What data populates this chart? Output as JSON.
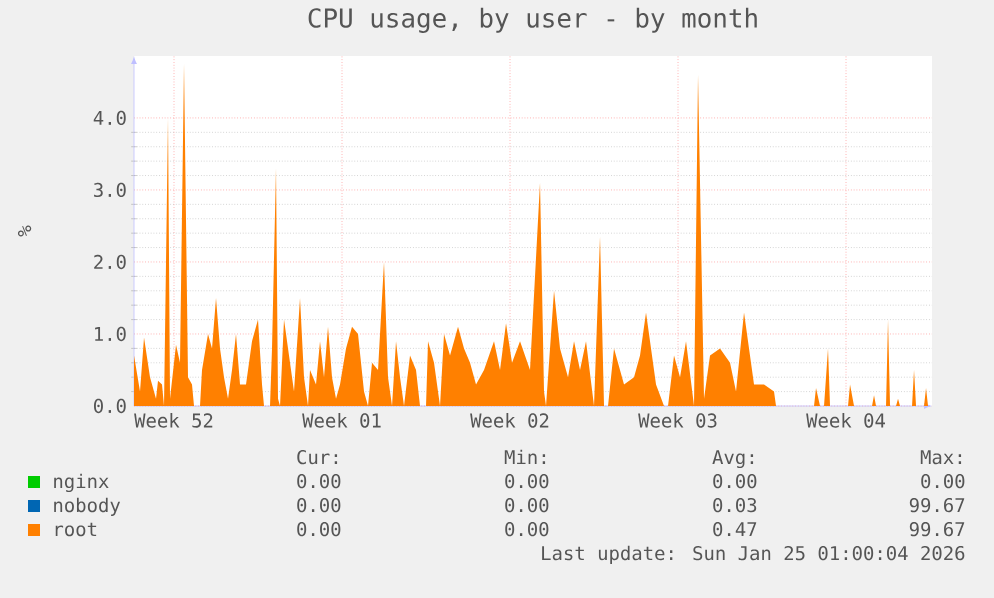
{
  "chart_data": {
    "type": "area",
    "title": "CPU usage, by user - by month",
    "ylabel": "%",
    "x": [
      "2025-12-22T20:00",
      "2025-12-23T02:00",
      "2025-12-23T06:00",
      "2025-12-23T12:00",
      "2025-12-23T18:00",
      "2025-12-23T20:00",
      "2025-12-24T00:00",
      "2025-12-24T02:00",
      "2025-12-24T06:00",
      "2025-12-24T08:00",
      "2025-12-24T14:00",
      "2025-12-24T18:00",
      "2025-12-24T22:00",
      "2025-12-25T02:00",
      "2025-12-25T06:00",
      "2025-12-25T08:00",
      "2025-12-25T14:00",
      "2025-12-25T16:00",
      "2025-12-25T22:00",
      "2025-12-26T02:00",
      "2025-12-26T06:00",
      "2025-12-26T10:00",
      "2025-12-26T14:00",
      "2025-12-26T18:00",
      "2025-12-26T22:00",
      "2025-12-27T02:00",
      "2025-12-27T06:00",
      "2025-12-27T12:00",
      "2025-12-27T18:00",
      "2025-12-28T00:00",
      "2025-12-28T04:00",
      "2025-12-28T06:00",
      "2025-12-28T12:00",
      "2025-12-28T14:00",
      "2025-12-28T18:00",
      "2025-12-28T20:00",
      "2025-12-28T22:00",
      "2025-12-29T02:00",
      "2025-12-29T08:00",
      "2025-12-29T12:00",
      "2025-12-29T18:00",
      "2025-12-29T22:00",
      "2025-12-30T02:00",
      "2025-12-30T04:00",
      "2025-12-30T10:00",
      "2025-12-30T14:00",
      "2025-12-30T18:00",
      "2025-12-30T22:00",
      "2025-12-31T02:00",
      "2025-12-31T06:00",
      "2025-12-31T10:00",
      "2025-12-31T16:00",
      "2025-12-31T22:00",
      "2026-01-01T04:00",
      "2026-01-01T10:00",
      "2026-01-01T14:00",
      "2026-01-01T18:00",
      "2026-01-02T00:00",
      "2026-01-02T06:00",
      "2026-01-02T10:00",
      "2026-01-02T14:00",
      "2026-01-02T18:00",
      "2026-01-02T22:00",
      "2026-01-03T02:00",
      "2026-01-03T08:00",
      "2026-01-03T14:00",
      "2026-01-03T18:00",
      "2026-01-04T00:00",
      "2026-01-04T02:00",
      "2026-01-04T08:00",
      "2026-01-04T14:00",
      "2026-01-04T18:00",
      "2026-01-05T00:00",
      "2026-01-05T08:00",
      "2026-01-05T14:00",
      "2026-01-05T20:00",
      "2026-01-06T02:00",
      "2026-01-06T10:00",
      "2026-01-06T20:00",
      "2026-01-07T02:00",
      "2026-01-07T08:00",
      "2026-01-07T14:00",
      "2026-01-07T22:00",
      "2026-01-08T08:00",
      "2026-01-08T18:00",
      "2026-01-08T22:00",
      "2026-01-09T00:00",
      "2026-01-09T08:00",
      "2026-01-09T14:00",
      "2026-01-09T22:00",
      "2026-01-10T04:00",
      "2026-01-10T10:00",
      "2026-01-10T16:00",
      "2026-01-11T00:00",
      "2026-01-11T06:00",
      "2026-01-11T10:00",
      "2026-01-11T14:00",
      "2026-01-11T20:00",
      "2026-01-12T06:00",
      "2026-01-12T16:00",
      "2026-01-12T22:00",
      "2026-01-13T04:00",
      "2026-01-13T14:00",
      "2026-01-13T22:00",
      "2026-01-14T02:00",
      "2026-01-14T08:00",
      "2026-01-14T14:00",
      "2026-01-14T20:00",
      "2026-01-15T04:00",
      "2026-01-15T08:00",
      "2026-01-15T14:00",
      "2026-01-15T20:00",
      "2026-01-16T06:00",
      "2026-01-16T16:00",
      "2026-01-16T22:00",
      "2026-01-17T06:00",
      "2026-01-17T16:00",
      "2026-01-18T02:00",
      "2026-01-18T12:00",
      "2026-01-18T14:00",
      "2026-01-20T04:00",
      "2026-01-20T06:00",
      "2026-01-20T10:00",
      "2026-01-20T14:00",
      "2026-01-20T18:00",
      "2026-01-20T20:00",
      "2026-01-21T14:00",
      "2026-01-21T16:00",
      "2026-01-21T20:00",
      "2026-01-22T14:00",
      "2026-01-22T16:00",
      "2026-01-22T18:00",
      "2026-01-23T04:00",
      "2026-01-23T06:00",
      "2026-01-23T08:00",
      "2026-01-23T14:00",
      "2026-01-23T16:00",
      "2026-01-23T18:00",
      "2026-01-24T06:00",
      "2026-01-24T08:00",
      "2026-01-24T10:00",
      "2026-01-24T18:00",
      "2026-01-24T20:00",
      "2026-01-24T22:00"
    ],
    "series": [
      {
        "name": "nginx",
        "color": "#00cc00",
        "values": [
          null,
          null,
          null,
          null,
          null,
          null,
          null,
          null,
          null,
          null,
          null,
          null,
          null,
          null,
          null,
          null,
          null,
          null,
          null,
          null,
          null,
          null,
          null,
          null,
          null,
          null,
          null,
          null,
          null,
          null,
          null,
          null,
          null,
          null,
          null,
          null,
          null,
          null,
          null,
          null,
          null,
          null,
          null,
          null,
          null,
          null,
          null,
          null,
          null,
          null,
          null,
          null,
          null,
          null,
          null,
          null,
          null,
          null,
          null,
          null,
          null,
          null,
          null,
          null,
          null,
          null,
          null,
          null,
          null,
          null,
          null,
          null,
          null,
          null,
          null,
          null,
          null,
          null,
          null,
          null,
          null,
          null,
          null,
          null,
          null,
          null,
          null,
          null,
          null,
          null,
          null,
          null,
          null,
          null,
          null,
          null,
          null,
          null,
          null,
          null,
          null,
          null,
          null,
          null,
          null,
          null,
          null,
          null,
          null,
          null,
          null,
          null,
          null,
          null,
          null,
          null,
          null,
          null,
          null,
          null,
          null,
          null,
          null,
          null,
          null,
          null,
          null,
          null,
          null,
          null,
          null,
          null,
          null,
          null,
          null,
          null,
          null,
          null,
          null,
          null,
          null,
          null,
          null,
          null
        ]
      },
      {
        "name": "nobody",
        "color": "#0066b3",
        "values": [
          null,
          null,
          null,
          null,
          null,
          null,
          null,
          null,
          null,
          null,
          null,
          null,
          null,
          null,
          null,
          null,
          null,
          null,
          null,
          null,
          null,
          null,
          null,
          null,
          null,
          null,
          null,
          null,
          null,
          null,
          null,
          null,
          null,
          null,
          null,
          null,
          null,
          null,
          null,
          null,
          null,
          null,
          null,
          null,
          null,
          null,
          null,
          null,
          null,
          null,
          null,
          null,
          null,
          null,
          null,
          null,
          null,
          null,
          null,
          null,
          null,
          null,
          null,
          null,
          null,
          null,
          null,
          null,
          null,
          null,
          null,
          null,
          null,
          null,
          null,
          null,
          null,
          null,
          null,
          null,
          null,
          null,
          null,
          null,
          null,
          null,
          null,
          null,
          null,
          null,
          null,
          null,
          null,
          null,
          null,
          null,
          null,
          null,
          null,
          null,
          null,
          null,
          null,
          null,
          null,
          null,
          null,
          null,
          null,
          null,
          null,
          null,
          null,
          null,
          null,
          null,
          null,
          null,
          null,
          null,
          null,
          null,
          null,
          null,
          null,
          null,
          null,
          null,
          null,
          null,
          null,
          null,
          null,
          null,
          null,
          null,
          null,
          null,
          null,
          null,
          null,
          null,
          null,
          null
        ]
      },
      {
        "name": "root",
        "color": "#ff8000",
        "values": [
          0.7,
          0.2,
          0.95,
          0.4,
          0.1,
          0.35,
          0.3,
          0.0,
          4.0,
          0.1,
          0.85,
          0.6,
          4.75,
          0.4,
          0.3,
          0.0,
          0.0,
          0.5,
          1.0,
          0.8,
          1.5,
          0.8,
          0.4,
          0.1,
          0.5,
          1.0,
          0.3,
          0.3,
          0.9,
          1.2,
          0.3,
          0.0,
          0.0,
          0.8,
          3.3,
          0.1,
          0.0,
          1.2,
          0.6,
          0.2,
          1.5,
          0.4,
          0.0,
          0.5,
          0.3,
          0.9,
          0.4,
          1.1,
          0.4,
          0.1,
          0.3,
          0.8,
          1.1,
          1.0,
          0.2,
          0.0,
          0.6,
          0.5,
          2.0,
          0.4,
          0.0,
          0.9,
          0.4,
          0.0,
          0.7,
          0.5,
          0.0,
          0.0,
          0.9,
          0.6,
          0.0,
          1.0,
          0.7,
          1.1,
          0.8,
          0.6,
          0.3,
          0.5,
          0.9,
          0.5,
          1.15,
          0.6,
          0.9,
          0.5,
          3.1,
          0.2,
          0.0,
          1.6,
          0.8,
          0.4,
          0.9,
          0.5,
          0.9,
          0.0,
          2.35,
          0.0,
          0.0,
          0.8,
          0.3,
          0.4,
          0.7,
          1.3,
          0.3,
          0.0,
          0.0,
          0.7,
          0.4,
          0.9,
          0.0,
          4.6,
          0.1,
          0.7,
          0.8,
          0.6,
          0.2,
          1.3,
          0.3,
          0.3,
          0.2,
          0.0,
          0.0,
          0.25,
          0.0,
          0.0,
          0.8,
          0.0,
          0.0,
          0.3,
          0.0,
          0.0,
          0.15,
          0.0,
          0.0,
          1.2,
          0.0,
          0.0,
          0.1,
          0.0,
          0.0,
          0.5,
          0.0,
          0.0,
          0.25,
          0.0
        ]
      }
    ],
    "xlim": [
      "2025-12-22T20:00",
      "2026-01-25T02:00"
    ],
    "ylim": [
      0,
      4.86
    ],
    "xticks": [
      {
        "value": "2025-12-24T12:00",
        "label": "Week 52"
      },
      {
        "value": "2025-12-31T12:00",
        "label": "Week 01"
      },
      {
        "value": "2026-01-07T12:00",
        "label": "Week 02"
      },
      {
        "value": "2026-01-14T12:00",
        "label": "Week 03"
      },
      {
        "value": "2026-01-21T12:00",
        "label": "Week 04"
      }
    ],
    "yticks": [
      {
        "value": 0,
        "label": "0.0"
      },
      {
        "value": 1,
        "label": "1.0"
      },
      {
        "value": 2,
        "label": "2.0"
      },
      {
        "value": 3,
        "label": "3.0"
      },
      {
        "value": 4,
        "label": "4.0"
      }
    ],
    "grid": true,
    "legend": "bottom",
    "annotations": [
      "Cur:",
      "Min:",
      "Avg:",
      "Max:",
      "0.00",
      "0.00",
      "0.00",
      "0.00",
      "0.00",
      "0.00",
      "0.03",
      "99.67",
      "0.00",
      "0.00",
      "0.47",
      "99.67",
      "Last update: Sun Jan 25 01:00:04 2026"
    ]
  }
}
